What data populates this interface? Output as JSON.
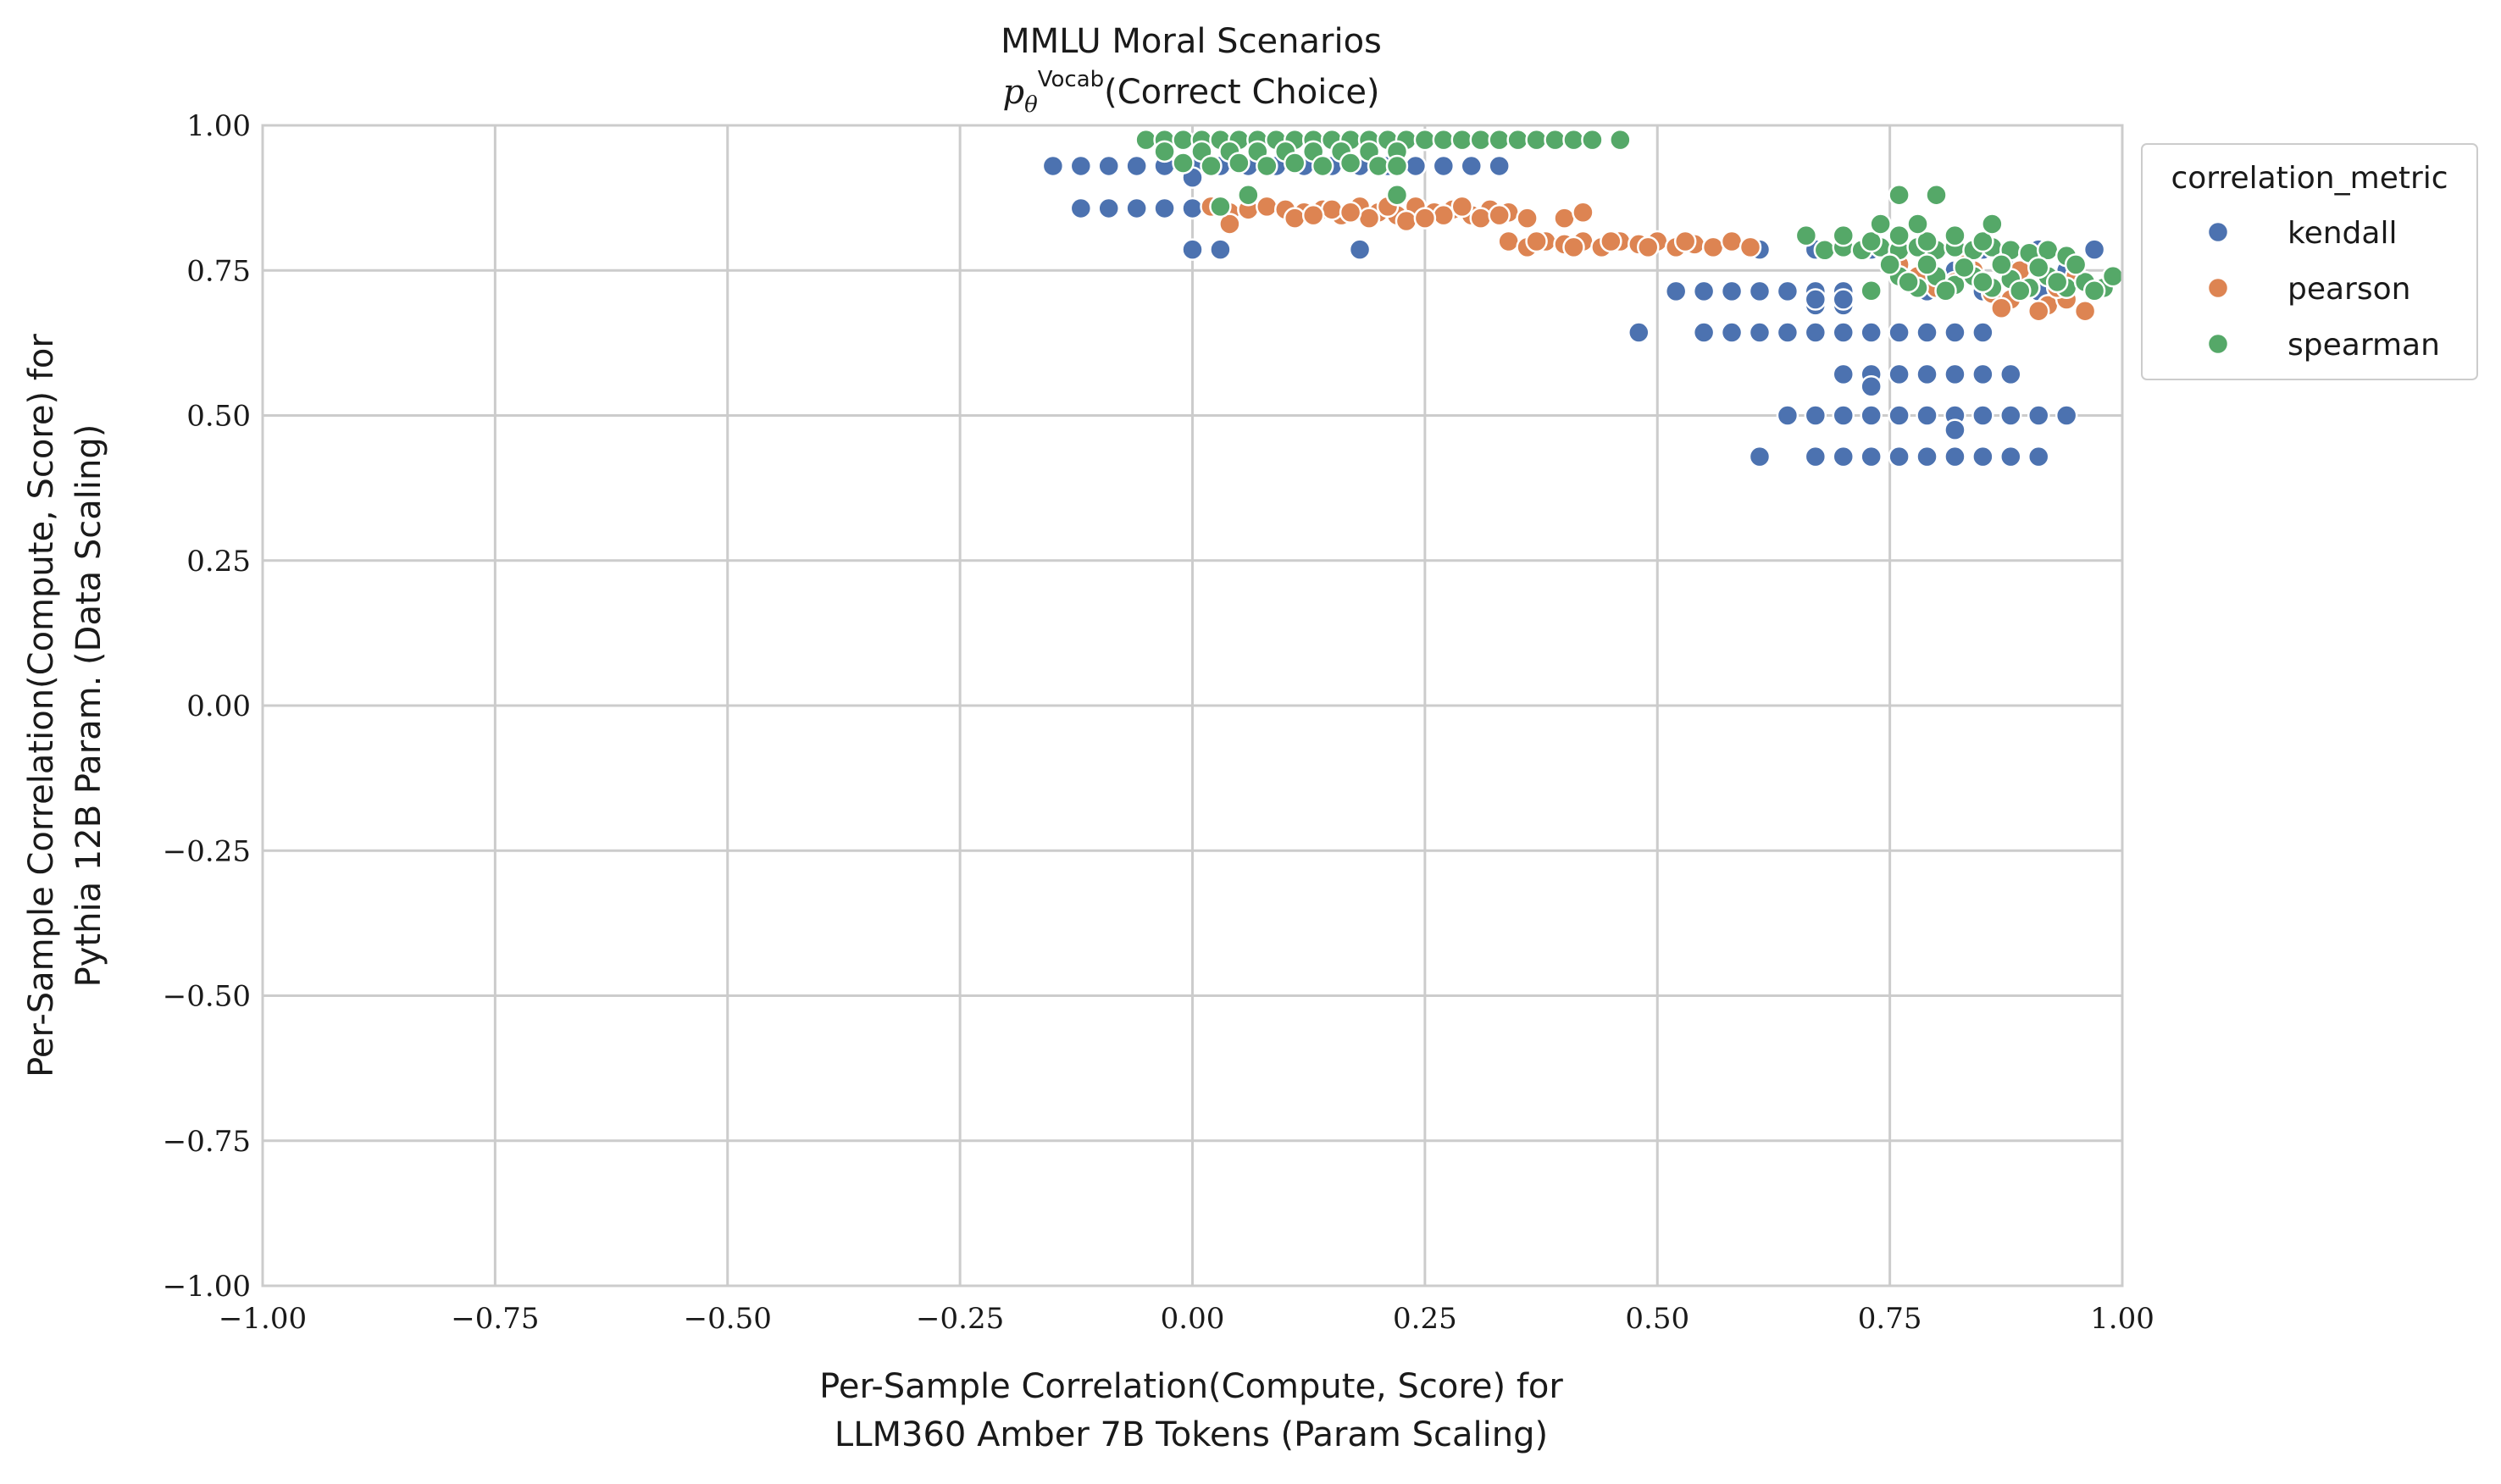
{
  "chart_data": {
    "type": "scatter",
    "title": "MMLU Moral Scenarios",
    "subtitle_math": "p",
    "subtitle_sub": "θ",
    "subtitle_sup": "Vocab",
    "subtitle_text": "(Correct Choice)",
    "xlabel_line1": "Per-Sample Correlation(Compute, Score) for",
    "xlabel_line2": "LLM360 Amber 7B Tokens (Param Scaling)",
    "ylabel_line1": "Per-Sample Correlation(Compute, Score) for",
    "ylabel_line2": "Pythia 12B Param. (Data Scaling)",
    "xlim": [
      -1.0,
      1.0
    ],
    "ylim": [
      -1.0,
      1.0
    ],
    "xticks": [
      -1.0,
      -0.75,
      -0.5,
      -0.25,
      0.0,
      0.25,
      0.5,
      0.75,
      1.0
    ],
    "yticks": [
      -1.0,
      -0.75,
      -0.5,
      -0.25,
      0.0,
      0.25,
      0.5,
      0.75,
      1.0
    ],
    "xtick_labels": [
      "−1.00",
      "−0.75",
      "−0.50",
      "−0.25",
      "0.00",
      "0.25",
      "0.50",
      "0.75",
      "1.00"
    ],
    "ytick_labels": [
      "−1.00",
      "−0.75",
      "−0.50",
      "−0.25",
      "0.00",
      "0.25",
      "0.50",
      "0.75",
      "1.00"
    ],
    "grid": true,
    "legend": {
      "title": "correlation_metric",
      "placement": "outside-top-right",
      "entries": [
        "kendall",
        "pearson",
        "spearman"
      ]
    },
    "series": [
      {
        "name": "kendall",
        "color": "#4c72b0",
        "points": [
          [
            -0.15,
            0.93
          ],
          [
            -0.12,
            0.93
          ],
          [
            -0.09,
            0.93
          ],
          [
            -0.06,
            0.93
          ],
          [
            -0.03,
            0.93
          ],
          [
            0.0,
            0.93
          ],
          [
            0.03,
            0.93
          ],
          [
            0.06,
            0.93
          ],
          [
            0.09,
            0.93
          ],
          [
            0.12,
            0.93
          ],
          [
            0.15,
            0.93
          ],
          [
            0.18,
            0.93
          ],
          [
            0.21,
            0.93
          ],
          [
            0.24,
            0.93
          ],
          [
            0.27,
            0.93
          ],
          [
            0.3,
            0.93
          ],
          [
            0.33,
            0.93
          ],
          [
            -0.12,
            0.857
          ],
          [
            -0.09,
            0.857
          ],
          [
            -0.06,
            0.857
          ],
          [
            -0.03,
            0.857
          ],
          [
            0.0,
            0.857
          ],
          [
            0.03,
            0.857
          ],
          [
            0.0,
            0.786
          ],
          [
            0.03,
            0.786
          ],
          [
            0.18,
            0.786
          ],
          [
            0.0,
            0.91
          ],
          [
            0.52,
            0.714
          ],
          [
            0.55,
            0.714
          ],
          [
            0.58,
            0.714
          ],
          [
            0.61,
            0.714
          ],
          [
            0.64,
            0.714
          ],
          [
            0.67,
            0.714
          ],
          [
            0.7,
            0.714
          ],
          [
            0.48,
            0.643
          ],
          [
            0.55,
            0.643
          ],
          [
            0.58,
            0.643
          ],
          [
            0.61,
            0.643
          ],
          [
            0.64,
            0.643
          ],
          [
            0.67,
            0.643
          ],
          [
            0.7,
            0.643
          ],
          [
            0.73,
            0.643
          ],
          [
            0.76,
            0.643
          ],
          [
            0.79,
            0.643
          ],
          [
            0.82,
            0.643
          ],
          [
            0.85,
            0.643
          ],
          [
            0.67,
            0.69
          ],
          [
            0.7,
            0.69
          ],
          [
            0.67,
            0.7
          ],
          [
            0.7,
            0.7
          ],
          [
            0.7,
            0.571
          ],
          [
            0.73,
            0.571
          ],
          [
            0.76,
            0.571
          ],
          [
            0.79,
            0.571
          ],
          [
            0.82,
            0.571
          ],
          [
            0.85,
            0.571
          ],
          [
            0.88,
            0.571
          ],
          [
            0.73,
            0.55
          ],
          [
            0.64,
            0.5
          ],
          [
            0.67,
            0.5
          ],
          [
            0.7,
            0.5
          ],
          [
            0.73,
            0.5
          ],
          [
            0.76,
            0.5
          ],
          [
            0.79,
            0.5
          ],
          [
            0.82,
            0.5
          ],
          [
            0.85,
            0.5
          ],
          [
            0.88,
            0.5
          ],
          [
            0.91,
            0.5
          ],
          [
            0.94,
            0.5
          ],
          [
            0.82,
            0.475
          ],
          [
            0.61,
            0.429
          ],
          [
            0.67,
            0.429
          ],
          [
            0.7,
            0.429
          ],
          [
            0.73,
            0.429
          ],
          [
            0.76,
            0.429
          ],
          [
            0.79,
            0.429
          ],
          [
            0.82,
            0.429
          ],
          [
            0.85,
            0.429
          ],
          [
            0.88,
            0.429
          ],
          [
            0.91,
            0.429
          ],
          [
            0.61,
            0.786
          ],
          [
            0.67,
            0.786
          ],
          [
            0.73,
            0.786
          ],
          [
            0.79,
            0.786
          ],
          [
            0.85,
            0.786
          ],
          [
            0.91,
            0.786
          ],
          [
            0.97,
            0.786
          ],
          [
            0.76,
            0.75
          ],
          [
            0.82,
            0.75
          ],
          [
            0.88,
            0.75
          ],
          [
            0.94,
            0.75
          ],
          [
            0.79,
            0.714
          ],
          [
            0.85,
            0.714
          ],
          [
            0.91,
            0.714
          ]
        ]
      },
      {
        "name": "pearson",
        "color": "#dd8452",
        "points": [
          [
            0.02,
            0.86
          ],
          [
            0.04,
            0.85
          ],
          [
            0.06,
            0.855
          ],
          [
            0.08,
            0.86
          ],
          [
            0.1,
            0.855
          ],
          [
            0.12,
            0.85
          ],
          [
            0.14,
            0.855
          ],
          [
            0.16,
            0.845
          ],
          [
            0.18,
            0.86
          ],
          [
            0.2,
            0.85
          ],
          [
            0.22,
            0.845
          ],
          [
            0.24,
            0.86
          ],
          [
            0.26,
            0.85
          ],
          [
            0.28,
            0.855
          ],
          [
            0.3,
            0.845
          ],
          [
            0.32,
            0.855
          ],
          [
            0.34,
            0.85
          ],
          [
            0.11,
            0.84
          ],
          [
            0.15,
            0.855
          ],
          [
            0.19,
            0.84
          ],
          [
            0.23,
            0.835
          ],
          [
            0.27,
            0.845
          ],
          [
            0.31,
            0.84
          ],
          [
            0.04,
            0.83
          ],
          [
            0.13,
            0.845
          ],
          [
            0.17,
            0.85
          ],
          [
            0.21,
            0.86
          ],
          [
            0.25,
            0.84
          ],
          [
            0.29,
            0.86
          ],
          [
            0.33,
            0.845
          ],
          [
            0.36,
            0.84
          ],
          [
            0.4,
            0.84
          ],
          [
            0.42,
            0.85
          ],
          [
            0.34,
            0.8
          ],
          [
            0.36,
            0.79
          ],
          [
            0.38,
            0.8
          ],
          [
            0.4,
            0.795
          ],
          [
            0.42,
            0.8
          ],
          [
            0.44,
            0.79
          ],
          [
            0.46,
            0.8
          ],
          [
            0.48,
            0.795
          ],
          [
            0.5,
            0.8
          ],
          [
            0.52,
            0.79
          ],
          [
            0.54,
            0.795
          ],
          [
            0.56,
            0.79
          ],
          [
            0.58,
            0.8
          ],
          [
            0.6,
            0.79
          ],
          [
            0.37,
            0.8
          ],
          [
            0.41,
            0.79
          ],
          [
            0.45,
            0.8
          ],
          [
            0.49,
            0.79
          ],
          [
            0.53,
            0.8
          ],
          [
            0.76,
            0.76
          ],
          [
            0.78,
            0.74
          ],
          [
            0.8,
            0.72
          ],
          [
            0.82,
            0.73
          ],
          [
            0.84,
            0.75
          ],
          [
            0.86,
            0.71
          ],
          [
            0.88,
            0.7
          ],
          [
            0.9,
            0.72
          ],
          [
            0.92,
            0.69
          ],
          [
            0.94,
            0.7
          ],
          [
            0.96,
            0.68
          ],
          [
            0.91,
            0.68
          ],
          [
            0.87,
            0.685
          ],
          [
            0.93,
            0.72
          ],
          [
            0.95,
            0.74
          ],
          [
            0.89,
            0.75
          ],
          [
            0.85,
            0.73
          ],
          [
            0.83,
            0.76
          ]
        ]
      },
      {
        "name": "spearman",
        "color": "#55a868",
        "points": [
          [
            -0.05,
            0.975
          ],
          [
            -0.03,
            0.975
          ],
          [
            -0.01,
            0.975
          ],
          [
            0.01,
            0.975
          ],
          [
            0.03,
            0.975
          ],
          [
            0.05,
            0.975
          ],
          [
            0.07,
            0.975
          ],
          [
            0.09,
            0.975
          ],
          [
            0.11,
            0.975
          ],
          [
            0.13,
            0.975
          ],
          [
            0.15,
            0.975
          ],
          [
            0.17,
            0.975
          ],
          [
            0.19,
            0.975
          ],
          [
            0.21,
            0.975
          ],
          [
            0.23,
            0.975
          ],
          [
            0.25,
            0.975
          ],
          [
            0.27,
            0.975
          ],
          [
            0.29,
            0.975
          ],
          [
            0.31,
            0.975
          ],
          [
            0.33,
            0.975
          ],
          [
            0.35,
            0.975
          ],
          [
            0.37,
            0.975
          ],
          [
            0.39,
            0.975
          ],
          [
            0.41,
            0.975
          ],
          [
            0.43,
            0.975
          ],
          [
            0.46,
            0.975
          ],
          [
            -0.03,
            0.955
          ],
          [
            0.01,
            0.955
          ],
          [
            0.04,
            0.955
          ],
          [
            0.07,
            0.955
          ],
          [
            0.1,
            0.955
          ],
          [
            0.13,
            0.955
          ],
          [
            0.16,
            0.955
          ],
          [
            0.19,
            0.955
          ],
          [
            0.22,
            0.955
          ],
          [
            -0.01,
            0.935
          ],
          [
            0.02,
            0.93
          ],
          [
            0.05,
            0.935
          ],
          [
            0.08,
            0.93
          ],
          [
            0.11,
            0.935
          ],
          [
            0.14,
            0.93
          ],
          [
            0.17,
            0.935
          ],
          [
            0.2,
            0.93
          ],
          [
            0.22,
            0.93
          ],
          [
            0.06,
            0.88
          ],
          [
            0.22,
            0.88
          ],
          [
            0.03,
            0.86
          ],
          [
            0.66,
            0.81
          ],
          [
            0.68,
            0.785
          ],
          [
            0.7,
            0.79
          ],
          [
            0.72,
            0.785
          ],
          [
            0.74,
            0.79
          ],
          [
            0.76,
            0.785
          ],
          [
            0.78,
            0.79
          ],
          [
            0.8,
            0.785
          ],
          [
            0.82,
            0.79
          ],
          [
            0.84,
            0.785
          ],
          [
            0.86,
            0.79
          ],
          [
            0.88,
            0.785
          ],
          [
            0.9,
            0.78
          ],
          [
            0.92,
            0.785
          ],
          [
            0.94,
            0.775
          ],
          [
            0.7,
            0.81
          ],
          [
            0.73,
            0.8
          ],
          [
            0.76,
            0.81
          ],
          [
            0.79,
            0.8
          ],
          [
            0.82,
            0.81
          ],
          [
            0.85,
            0.8
          ],
          [
            0.76,
            0.88
          ],
          [
            0.8,
            0.88
          ],
          [
            0.86,
            0.83
          ],
          [
            0.74,
            0.83
          ],
          [
            0.78,
            0.83
          ],
          [
            0.76,
            0.74
          ],
          [
            0.78,
            0.72
          ],
          [
            0.8,
            0.74
          ],
          [
            0.82,
            0.725
          ],
          [
            0.84,
            0.74
          ],
          [
            0.86,
            0.72
          ],
          [
            0.88,
            0.735
          ],
          [
            0.9,
            0.72
          ],
          [
            0.92,
            0.74
          ],
          [
            0.94,
            0.72
          ],
          [
            0.96,
            0.73
          ],
          [
            0.98,
            0.72
          ],
          [
            0.99,
            0.74
          ],
          [
            0.73,
            0.715
          ],
          [
            0.77,
            0.73
          ],
          [
            0.81,
            0.715
          ],
          [
            0.85,
            0.73
          ],
          [
            0.89,
            0.715
          ],
          [
            0.93,
            0.73
          ],
          [
            0.97,
            0.715
          ],
          [
            0.79,
            0.76
          ],
          [
            0.83,
            0.755
          ],
          [
            0.87,
            0.76
          ],
          [
            0.91,
            0.755
          ],
          [
            0.95,
            0.76
          ],
          [
            0.75,
            0.76
          ]
        ]
      }
    ]
  }
}
